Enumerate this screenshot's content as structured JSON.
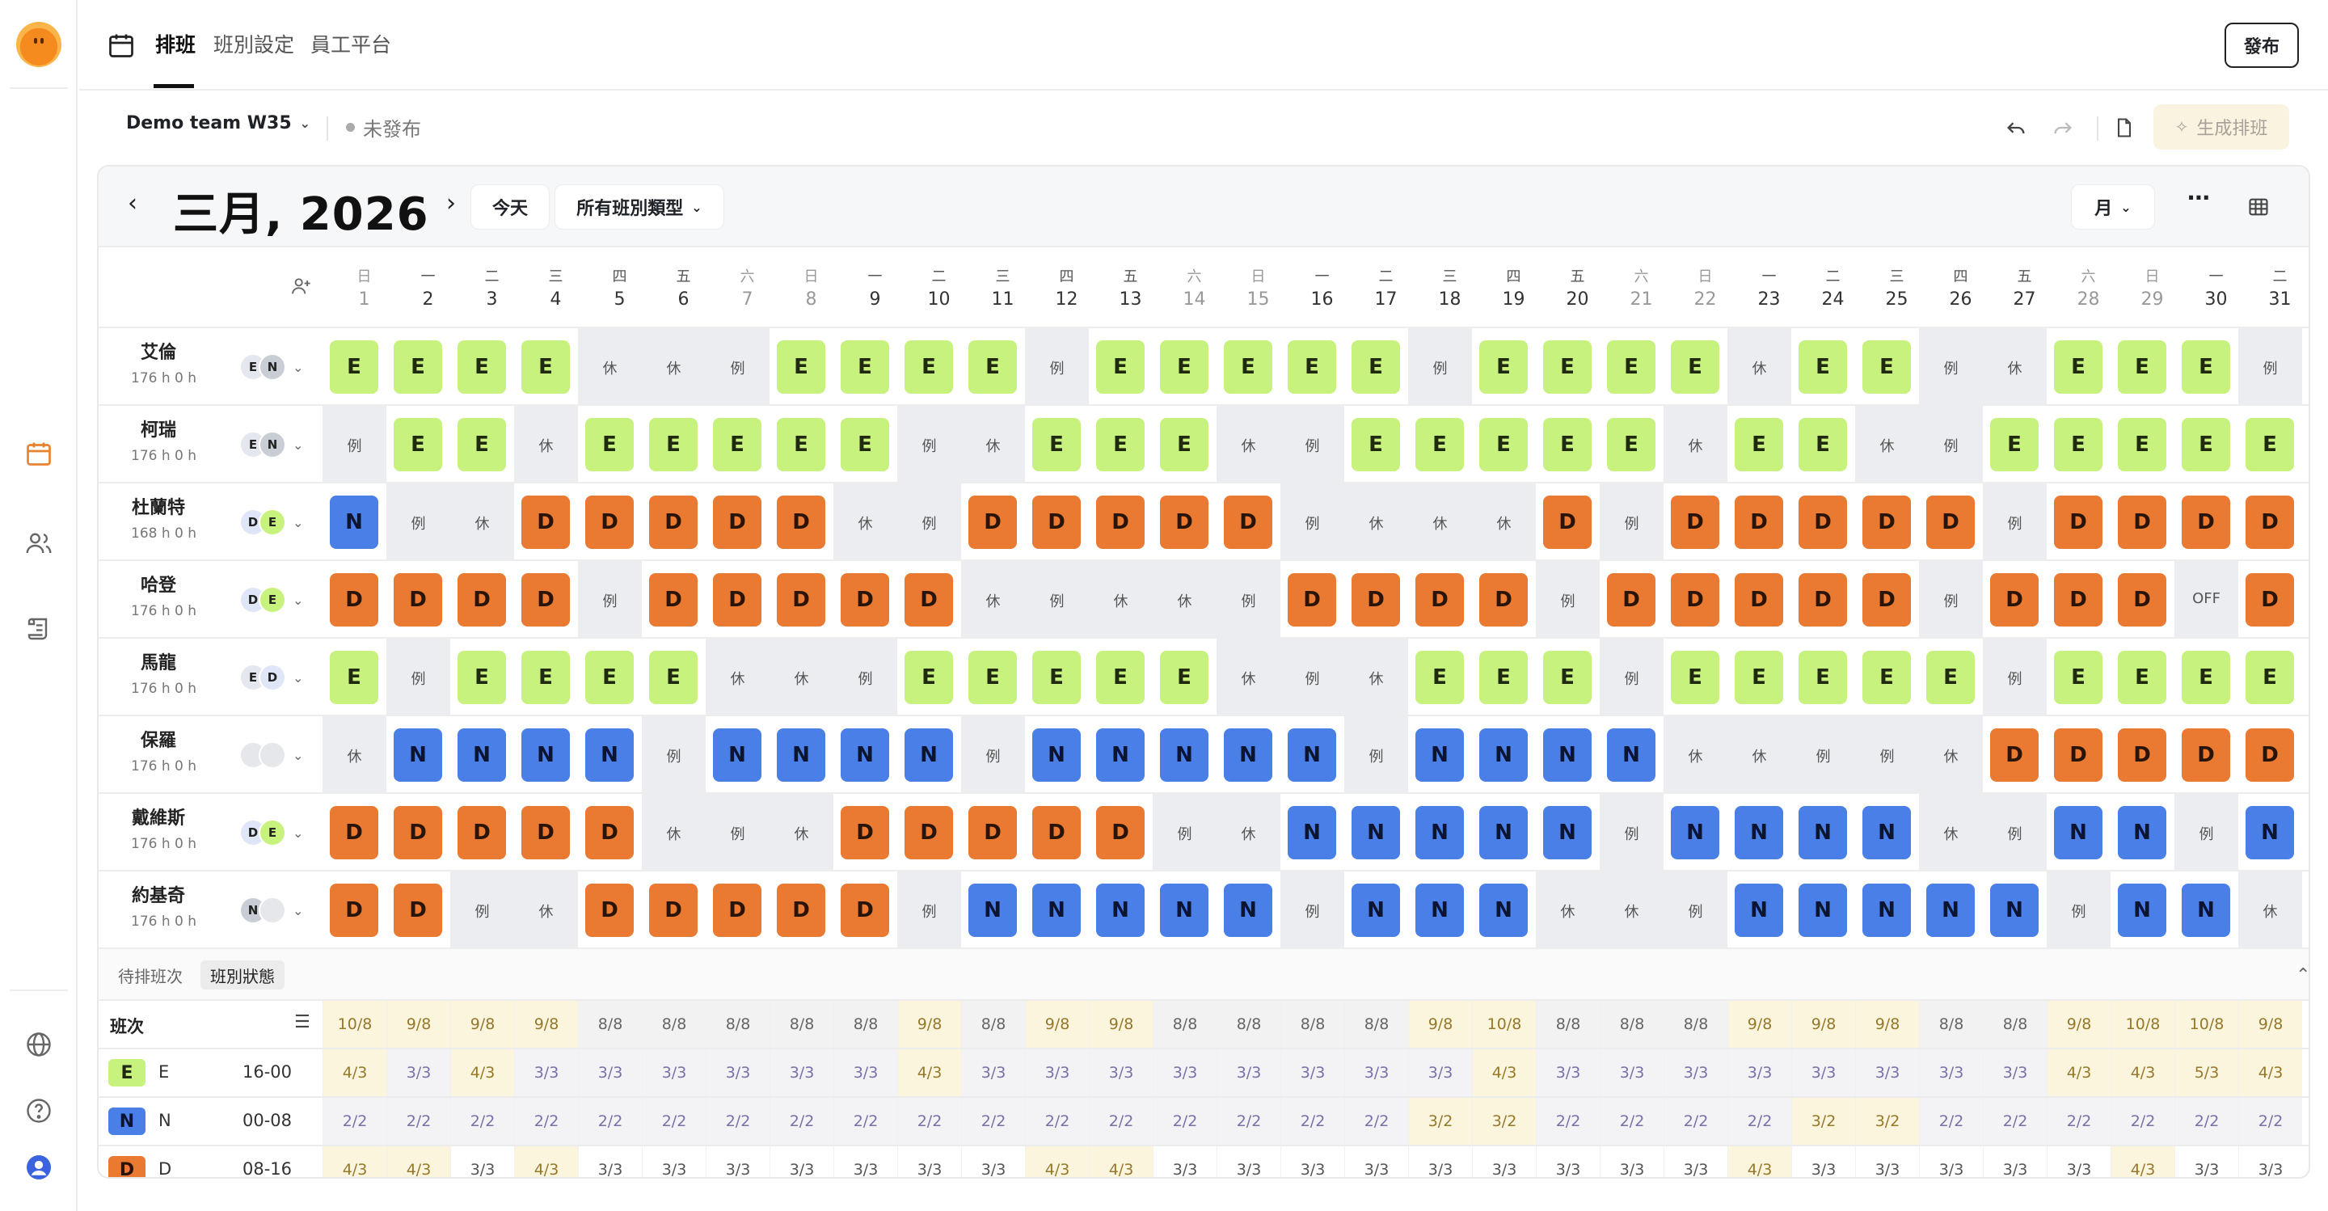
{
  "rail": {
    "icons": [
      "logo",
      "calendar-icon",
      "users-icon",
      "scroll-icon",
      "globe-icon",
      "help-icon",
      "profile-icon"
    ]
  },
  "topbar": {
    "tabs": [
      {
        "label": "排班",
        "active": true
      },
      {
        "label": "班別設定",
        "active": false
      },
      {
        "label": "員工平台",
        "active": false
      }
    ],
    "publish_label": "發布"
  },
  "toolbar": {
    "team": "Demo team W35",
    "status": "未發布",
    "generate_label": "生成排班"
  },
  "calendar": {
    "month_title": "三月, 2026",
    "today_label": "今天",
    "shift_filter": "所有班別類型",
    "view_mode": "月"
  },
  "days": [
    {
      "wd": "日",
      "d": "1",
      "we": true
    },
    {
      "wd": "一",
      "d": "2",
      "we": false
    },
    {
      "wd": "二",
      "d": "3",
      "we": false
    },
    {
      "wd": "三",
      "d": "4",
      "we": false
    },
    {
      "wd": "四",
      "d": "5",
      "we": false
    },
    {
      "wd": "五",
      "d": "6",
      "we": false
    },
    {
      "wd": "六",
      "d": "7",
      "we": true
    },
    {
      "wd": "日",
      "d": "8",
      "we": true
    },
    {
      "wd": "一",
      "d": "9",
      "we": false
    },
    {
      "wd": "二",
      "d": "10",
      "we": false
    },
    {
      "wd": "三",
      "d": "11",
      "we": false
    },
    {
      "wd": "四",
      "d": "12",
      "we": false
    },
    {
      "wd": "五",
      "d": "13",
      "we": false
    },
    {
      "wd": "六",
      "d": "14",
      "we": true
    },
    {
      "wd": "日",
      "d": "15",
      "we": true
    },
    {
      "wd": "一",
      "d": "16",
      "we": false
    },
    {
      "wd": "二",
      "d": "17",
      "we": false
    },
    {
      "wd": "三",
      "d": "18",
      "we": false
    },
    {
      "wd": "四",
      "d": "19",
      "we": false
    },
    {
      "wd": "五",
      "d": "20",
      "we": false
    },
    {
      "wd": "六",
      "d": "21",
      "we": true
    },
    {
      "wd": "日",
      "d": "22",
      "we": true
    },
    {
      "wd": "一",
      "d": "23",
      "we": false
    },
    {
      "wd": "二",
      "d": "24",
      "we": false
    },
    {
      "wd": "三",
      "d": "25",
      "we": false
    },
    {
      "wd": "四",
      "d": "26",
      "we": false
    },
    {
      "wd": "五",
      "d": "27",
      "we": false
    },
    {
      "wd": "六",
      "d": "28",
      "we": true
    },
    {
      "wd": "日",
      "d": "29",
      "we": true
    },
    {
      "wd": "一",
      "d": "30",
      "we": false
    },
    {
      "wd": "二",
      "d": "31",
      "we": false
    }
  ],
  "employees": [
    {
      "name": "艾倫",
      "hours": "176 h  0 h",
      "prefs": [
        "E",
        "N"
      ],
      "shifts": [
        "E",
        "E",
        "E",
        "E",
        "休",
        "休",
        "例",
        "E",
        "E",
        "E",
        "E",
        "例",
        "E",
        "E",
        "E",
        "E",
        "E",
        "例",
        "E",
        "E",
        "E",
        "E",
        "休",
        "E",
        "E",
        "例",
        "休",
        "E",
        "E",
        "E",
        "例"
      ]
    },
    {
      "name": "柯瑞",
      "hours": "176 h  0 h",
      "prefs": [
        "E",
        "N"
      ],
      "shifts": [
        "例",
        "E",
        "E",
        "休",
        "E",
        "E",
        "E",
        "E",
        "E",
        "例",
        "休",
        "E",
        "E",
        "E",
        "休",
        "例",
        "E",
        "E",
        "E",
        "E",
        "E",
        "休",
        "E",
        "E",
        "休",
        "例",
        "E",
        "E",
        "E",
        "E",
        "E"
      ]
    },
    {
      "name": "杜蘭特",
      "hours": "168 h  0 h",
      "prefs": [
        "D",
        "E"
      ],
      "shifts": [
        "N",
        "例",
        "休",
        "D",
        "D",
        "D",
        "D",
        "D",
        "休",
        "例",
        "D",
        "D",
        "D",
        "D",
        "D",
        "例",
        "休",
        "休",
        "休",
        "D",
        "例",
        "D",
        "D",
        "D",
        "D",
        "D",
        "例",
        "D",
        "D",
        "D",
        "D"
      ]
    },
    {
      "name": "哈登",
      "hours": "176 h  0 h",
      "prefs": [
        "D",
        "E"
      ],
      "shifts": [
        "D",
        "D",
        "D",
        "D",
        "例",
        "D",
        "D",
        "D",
        "D",
        "D",
        "休",
        "例",
        "休",
        "休",
        "例",
        "D",
        "D",
        "D",
        "D",
        "例",
        "D",
        "D",
        "D",
        "D",
        "D",
        "例",
        "D",
        "D",
        "D",
        "OFF",
        "D"
      ]
    },
    {
      "name": "馬龍",
      "hours": "176 h  0 h",
      "prefs": [
        "E",
        "D"
      ],
      "shifts": [
        "E",
        "例",
        "E",
        "E",
        "E",
        "E",
        "休",
        "休",
        "例",
        "E",
        "E",
        "E",
        "E",
        "E",
        "休",
        "例",
        "休",
        "E",
        "E",
        "E",
        "例",
        "E",
        "E",
        "E",
        "E",
        "E",
        "例",
        "E",
        "E",
        "E",
        "E"
      ]
    },
    {
      "name": "保羅",
      "hours": "176 h  0 h",
      "prefs": [
        "",
        ""
      ],
      "shifts": [
        "休",
        "N",
        "N",
        "N",
        "N",
        "例",
        "N",
        "N",
        "N",
        "N",
        "例",
        "N",
        "N",
        "N",
        "N",
        "N",
        "例",
        "N",
        "N",
        "N",
        "N",
        "休",
        "休",
        "例",
        "例",
        "休",
        "D",
        "D",
        "D",
        "D",
        "D"
      ]
    },
    {
      "name": "戴維斯",
      "hours": "176 h  0 h",
      "prefs": [
        "D",
        "E"
      ],
      "shifts": [
        "D",
        "D",
        "D",
        "D",
        "D",
        "休",
        "例",
        "休",
        "D",
        "D",
        "D",
        "D",
        "D",
        "例",
        "休",
        "N",
        "N",
        "N",
        "N",
        "N",
        "例",
        "N",
        "N",
        "N",
        "N",
        "休",
        "例",
        "N",
        "N",
        "例",
        "N"
      ]
    },
    {
      "name": "約基奇",
      "hours": "176 h  0 h",
      "prefs": [
        "N",
        ""
      ],
      "shifts": [
        "D",
        "D",
        "例",
        "休",
        "D",
        "D",
        "D",
        "D",
        "D",
        "例",
        "N",
        "N",
        "N",
        "N",
        "N",
        "例",
        "N",
        "N",
        "N",
        "休",
        "休",
        "例",
        "N",
        "N",
        "N",
        "N",
        "N",
        "例",
        "N",
        "N",
        "休"
      ]
    }
  ],
  "stats": {
    "tab_pending": "待排班次",
    "tab_status": "班別狀態",
    "shift_col_label": "班次",
    "header_row": [
      "10/8",
      "9/8",
      "9/8",
      "9/8",
      "8/8",
      "8/8",
      "8/8",
      "8/8",
      "8/8",
      "9/8",
      "8/8",
      "9/8",
      "9/8",
      "8/8",
      "8/8",
      "8/8",
      "8/8",
      "9/8",
      "10/8",
      "8/8",
      "8/8",
      "8/8",
      "9/8",
      "9/8",
      "9/8",
      "8/8",
      "8/8",
      "9/8",
      "10/8",
      "10/8",
      "9/8"
    ],
    "rows": [
      {
        "code": "E",
        "name": "E",
        "time": "16-00",
        "color": "#c7f27e",
        "text": "#1f2a0e",
        "values": [
          "4/3",
          "3/3",
          "4/3",
          "3/3",
          "3/3",
          "3/3",
          "3/3",
          "3/3",
          "3/3",
          "4/3",
          "3/3",
          "3/3",
          "3/3",
          "3/3",
          "3/3",
          "3/3",
          "3/3",
          "3/3",
          "4/3",
          "3/3",
          "3/3",
          "3/3",
          "3/3",
          "3/3",
          "3/3",
          "3/3",
          "3/3",
          "4/3",
          "4/3",
          "5/3",
          "4/3"
        ]
      },
      {
        "code": "N",
        "name": "N",
        "time": "00-08",
        "color": "#4a7fe8",
        "text": "#0b1430",
        "values": [
          "2/2",
          "2/2",
          "2/2",
          "2/2",
          "2/2",
          "2/2",
          "2/2",
          "2/2",
          "2/2",
          "2/2",
          "2/2",
          "2/2",
          "2/2",
          "2/2",
          "2/2",
          "2/2",
          "2/2",
          "3/2",
          "3/2",
          "2/2",
          "2/2",
          "2/2",
          "2/2",
          "3/2",
          "3/2",
          "2/2",
          "2/2",
          "2/2",
          "2/2",
          "2/2",
          "2/2"
        ]
      },
      {
        "code": "D",
        "name": "D",
        "time": "08-16",
        "color": "#ea7a32",
        "text": "#2a1407",
        "values": [
          "4/3",
          "4/3",
          "3/3",
          "4/3",
          "3/3",
          "3/3",
          "3/3",
          "3/3",
          "3/3",
          "3/3",
          "3/3",
          "4/3",
          "4/3",
          "3/3",
          "3/3",
          "3/3",
          "3/3",
          "3/3",
          "3/3",
          "3/3",
          "3/3",
          "3/3",
          "4/3",
          "3/3",
          "3/3",
          "3/3",
          "3/3",
          "3/3",
          "4/3",
          "3/3",
          "3/3"
        ]
      }
    ]
  }
}
